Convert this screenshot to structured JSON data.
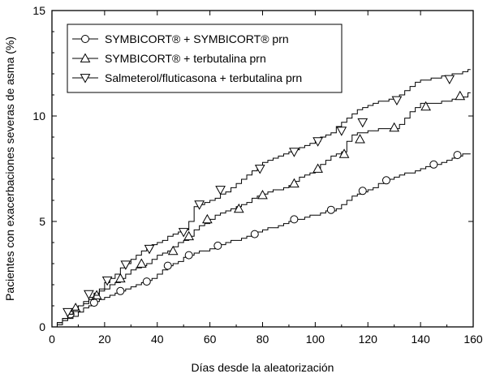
{
  "chart_data": {
    "type": "line",
    "xlabel": "Días desde la aleatorización",
    "ylabel": "Pacientes con exacerbaciones severas de asma (%)",
    "xlim": [
      0,
      160
    ],
    "ylim": [
      0,
      15
    ],
    "xticks": [
      0,
      20,
      40,
      60,
      80,
      100,
      120,
      140,
      160
    ],
    "yticks": [
      0,
      5,
      10,
      15
    ],
    "grid": false,
    "legend_position": "top-left",
    "series": [
      {
        "name": "SYMBICORT® + SYMBICORT® prn",
        "marker": "circle",
        "x": [
          0,
          2,
          4,
          6,
          8,
          10,
          12,
          14,
          16,
          18,
          20,
          22,
          24,
          26,
          28,
          30,
          32,
          34,
          36,
          38,
          40,
          42,
          44,
          46,
          48,
          50,
          52,
          54,
          56,
          58,
          60,
          62,
          64,
          66,
          68,
          70,
          72,
          74,
          76,
          78,
          80,
          82,
          84,
          86,
          88,
          90,
          92,
          94,
          96,
          98,
          100,
          102,
          104,
          106,
          108,
          110,
          112,
          114,
          116,
          118,
          120,
          122,
          124,
          126,
          128,
          130,
          132,
          134,
          136,
          138,
          140,
          142,
          144,
          146,
          148,
          150,
          152,
          154,
          156,
          158
        ],
        "y": [
          0.0,
          0.1,
          0.3,
          0.4,
          0.5,
          0.7,
          0.9,
          1.0,
          1.2,
          1.3,
          1.4,
          1.5,
          1.6,
          1.7,
          1.8,
          1.9,
          2.0,
          2.1,
          2.2,
          2.3,
          2.5,
          2.7,
          2.9,
          3.0,
          3.1,
          3.3,
          3.4,
          3.5,
          3.6,
          3.6,
          3.7,
          3.8,
          3.9,
          4.0,
          4.1,
          4.1,
          4.2,
          4.3,
          4.4,
          4.5,
          4.6,
          4.7,
          4.7,
          4.8,
          4.9,
          5.0,
          5.1,
          5.1,
          5.2,
          5.3,
          5.3,
          5.4,
          5.5,
          5.5,
          5.6,
          5.8,
          6.0,
          6.2,
          6.3,
          6.4,
          6.5,
          6.6,
          6.8,
          6.9,
          7.0,
          7.1,
          7.2,
          7.3,
          7.3,
          7.4,
          7.5,
          7.6,
          7.7,
          7.7,
          7.8,
          7.9,
          8.0,
          8.1,
          8.2,
          8.2
        ],
        "marker_x": [
          7,
          16,
          26,
          36,
          44,
          52,
          63,
          77,
          92,
          106,
          118,
          127,
          145,
          154
        ],
        "marker_y": [
          0.6,
          1.15,
          1.7,
          2.15,
          2.9,
          3.4,
          3.85,
          4.4,
          5.1,
          5.55,
          6.45,
          6.95,
          7.7,
          8.15
        ]
      },
      {
        "name": "SYMBICORT® + terbutalina prn",
        "marker": "triangle-up",
        "x": [
          0,
          2,
          4,
          6,
          8,
          10,
          12,
          14,
          16,
          18,
          20,
          22,
          24,
          26,
          28,
          30,
          32,
          34,
          36,
          38,
          40,
          42,
          44,
          46,
          48,
          50,
          52,
          54,
          56,
          58,
          60,
          62,
          64,
          66,
          68,
          70,
          72,
          74,
          76,
          78,
          80,
          82,
          84,
          86,
          88,
          90,
          92,
          94,
          96,
          98,
          100,
          102,
          104,
          106,
          108,
          110,
          112,
          114,
          116,
          118,
          120,
          122,
          124,
          126,
          128,
          130,
          132,
          134,
          136,
          138,
          140,
          142,
          144,
          146,
          148,
          150,
          152,
          154,
          156,
          158
        ],
        "y": [
          0.0,
          0.2,
          0.4,
          0.6,
          0.8,
          1.0,
          1.2,
          1.4,
          1.6,
          1.7,
          1.8,
          2.0,
          2.1,
          2.3,
          2.5,
          2.7,
          2.8,
          2.9,
          3.0,
          3.2,
          3.4,
          3.5,
          3.6,
          3.8,
          4.0,
          4.1,
          4.3,
          4.6,
          4.8,
          4.9,
          5.1,
          5.3,
          5.4,
          5.5,
          5.6,
          5.7,
          5.8,
          5.9,
          6.1,
          6.2,
          6.3,
          6.4,
          6.5,
          6.5,
          6.6,
          6.7,
          6.9,
          7.1,
          7.2,
          7.3,
          7.5,
          7.7,
          7.9,
          8.1,
          8.2,
          8.3,
          8.8,
          9.1,
          9.2,
          9.2,
          9.3,
          9.3,
          9.4,
          9.4,
          9.4,
          9.4,
          9.6,
          9.9,
          10.2,
          10.4,
          10.6,
          10.6,
          10.6,
          10.6,
          10.7,
          10.7,
          10.8,
          10.8,
          10.9,
          11.1
        ],
        "marker_x": [
          9,
          17,
          26,
          34,
          46,
          52,
          59,
          71,
          80,
          92,
          101,
          111,
          117,
          130,
          142,
          155
        ],
        "marker_y": [
          0.9,
          1.5,
          2.3,
          3.0,
          3.6,
          4.3,
          5.1,
          5.6,
          6.25,
          6.8,
          7.5,
          8.2,
          8.9,
          9.45,
          10.45,
          10.95
        ]
      },
      {
        "name": "Salmeterol/fluticasona + terbutalina prn",
        "marker": "triangle-down",
        "x": [
          0,
          2,
          4,
          6,
          8,
          10,
          12,
          14,
          16,
          18,
          20,
          22,
          24,
          26,
          28,
          30,
          32,
          34,
          36,
          38,
          40,
          42,
          44,
          46,
          48,
          50,
          52,
          54,
          56,
          58,
          60,
          62,
          64,
          66,
          68,
          70,
          72,
          74,
          76,
          78,
          80,
          82,
          84,
          86,
          88,
          90,
          92,
          94,
          96,
          98,
          100,
          102,
          104,
          106,
          108,
          110,
          112,
          114,
          116,
          118,
          120,
          122,
          124,
          126,
          128,
          130,
          132,
          134,
          136,
          138,
          140,
          142,
          144,
          146,
          148,
          150,
          152,
          154,
          156,
          158
        ],
        "y": [
          0.0,
          0.2,
          0.4,
          0.6,
          0.8,
          1.0,
          1.1,
          1.3,
          1.5,
          1.8,
          2.1,
          2.3,
          2.5,
          2.8,
          3.0,
          3.2,
          3.4,
          3.6,
          3.7,
          3.9,
          4.0,
          4.1,
          4.3,
          4.4,
          4.5,
          4.6,
          5.0,
          5.7,
          5.8,
          5.9,
          6.0,
          6.1,
          6.3,
          6.4,
          6.6,
          6.8,
          7.0,
          7.2,
          7.4,
          7.6,
          7.8,
          7.9,
          8.0,
          8.1,
          8.2,
          8.3,
          8.4,
          8.5,
          8.6,
          8.7,
          8.8,
          9.0,
          9.1,
          9.2,
          9.5,
          9.7,
          9.9,
          10.1,
          10.3,
          10.4,
          10.5,
          10.6,
          10.7,
          10.7,
          10.8,
          10.8,
          11.0,
          11.2,
          11.4,
          11.6,
          11.7,
          11.7,
          11.8,
          11.8,
          11.9,
          11.9,
          12.0,
          12.0,
          12.1,
          12.2
        ],
        "marker_x": [
          6,
          14,
          21,
          28,
          37,
          50,
          56,
          64,
          79,
          92,
          101,
          110,
          118,
          131,
          151
        ],
        "marker_y": [
          0.7,
          1.55,
          2.2,
          2.95,
          3.7,
          4.5,
          5.8,
          6.5,
          7.5,
          8.3,
          8.8,
          9.3,
          9.7,
          10.75,
          11.75
        ]
      }
    ]
  }
}
